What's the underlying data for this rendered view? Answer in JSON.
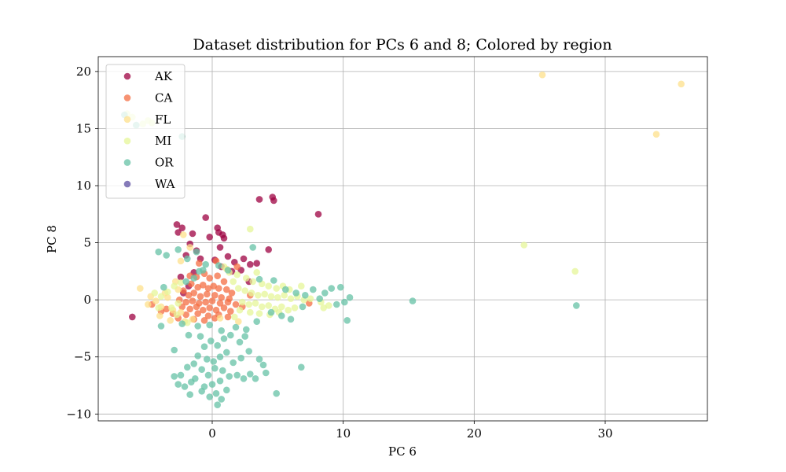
{
  "chart_data": {
    "type": "scatter",
    "title": "Dataset distribution for PCs 6 and 8; Colored by region",
    "xlabel": "PC 6",
    "ylabel": "PC 8",
    "xlim": [
      -8.7,
      37.8
    ],
    "ylim": [
      -10.6,
      21.3
    ],
    "xticks": [
      0,
      10,
      20,
      30
    ],
    "yticks": [
      -10,
      -5,
      0,
      5,
      10,
      15,
      20
    ],
    "grid": true,
    "legend_position": "upper-left",
    "series": [
      {
        "name": "AK",
        "color": "#9e0142",
        "points": [
          [
            -6.1,
            -1.5
          ],
          [
            -2.7,
            6.6
          ],
          [
            -2.3,
            6.3
          ],
          [
            -2.6,
            5.9
          ],
          [
            -1.5,
            5.8
          ],
          [
            -0.5,
            7.2
          ],
          [
            0.4,
            6.3
          ],
          [
            0.5,
            5.9
          ],
          [
            0.8,
            5.7
          ],
          [
            0.9,
            5.4
          ],
          [
            -0.2,
            5.5
          ],
          [
            0.6,
            4.6
          ],
          [
            1.2,
            3.8
          ],
          [
            1.7,
            3.3
          ],
          [
            2.4,
            3.6
          ],
          [
            2.9,
            3.1
          ],
          [
            3.4,
            3.2
          ],
          [
            3.6,
            8.8
          ],
          [
            4.6,
            9.0
          ],
          [
            4.7,
            8.7
          ],
          [
            4.3,
            4.4
          ],
          [
            8.1,
            7.5
          ],
          [
            -1.7,
            4.9
          ],
          [
            -1.2,
            4.3
          ],
          [
            -2.0,
            3.9
          ],
          [
            -0.9,
            3.6
          ],
          [
            0.2,
            3.5
          ],
          [
            -1.4,
            2.4
          ],
          [
            0.7,
            2.9
          ],
          [
            1.5,
            2.5
          ],
          [
            2.2,
            2.6
          ],
          [
            -2.4,
            2.0
          ],
          [
            2.8,
            1.6
          ],
          [
            -2.2,
            0.6
          ],
          [
            -1.8,
            1.2
          ]
        ]
      },
      {
        "name": "CA",
        "color": "#f46d43",
        "points": [
          [
            -1.0,
            3.2
          ],
          [
            0.3,
            3.4
          ],
          [
            1.9,
            2.9
          ],
          [
            -1.7,
            2.1
          ],
          [
            -1.2,
            2.0
          ],
          [
            -0.6,
            2.3
          ],
          [
            -0.2,
            1.9
          ],
          [
            0.4,
            2.1
          ],
          [
            0.9,
            1.6
          ],
          [
            -1.6,
            1.4
          ],
          [
            -1.1,
            1.1
          ],
          [
            -0.7,
            1.3
          ],
          [
            -0.3,
            1.0
          ],
          [
            0.1,
            1.2
          ],
          [
            0.5,
            1.0
          ],
          [
            1.1,
            0.9
          ],
          [
            1.5,
            0.6
          ],
          [
            -2.2,
            0.8
          ],
          [
            -1.8,
            0.4
          ],
          [
            -1.4,
            0.6
          ],
          [
            -0.9,
            0.3
          ],
          [
            -0.4,
            0.5
          ],
          [
            0.2,
            0.4
          ],
          [
            0.7,
            0.2
          ],
          [
            1.3,
            0.1
          ],
          [
            -2.5,
            0.0
          ],
          [
            -2.0,
            -0.2
          ],
          [
            -1.5,
            -0.1
          ],
          [
            -1.0,
            -0.3
          ],
          [
            -0.5,
            -0.2
          ],
          [
            0.0,
            -0.1
          ],
          [
            0.6,
            -0.3
          ],
          [
            1.2,
            -0.2
          ],
          [
            1.8,
            -0.4
          ],
          [
            -2.3,
            -0.6
          ],
          [
            -1.7,
            -0.8
          ],
          [
            -1.2,
            -0.6
          ],
          [
            -0.7,
            -0.9
          ],
          [
            -0.2,
            -0.7
          ],
          [
            0.3,
            -0.9
          ],
          [
            0.9,
            -0.7
          ],
          [
            1.4,
            -1.0
          ],
          [
            -3.0,
            -1.2
          ],
          [
            -2.0,
            -1.3
          ],
          [
            -1.1,
            -1.2
          ],
          [
            -0.3,
            -1.4
          ],
          [
            0.5,
            -1.3
          ],
          [
            1.2,
            -1.5
          ],
          [
            -2.6,
            -1.6
          ],
          [
            -1.4,
            -1.7
          ],
          [
            -0.6,
            -1.8
          ],
          [
            0.2,
            -1.6
          ],
          [
            -3.5,
            -0.8
          ],
          [
            -3.9,
            -1.0
          ],
          [
            2.9,
            0.4
          ],
          [
            7.4,
            -0.3
          ],
          [
            -4.6,
            -0.4
          ],
          [
            2.3,
            -0.6
          ]
        ]
      },
      {
        "name": "FL",
        "color": "#fee08b",
        "points": [
          [
            -5.5,
            1.0
          ],
          [
            -4.7,
            0.3
          ],
          [
            -4.3,
            -0.1
          ],
          [
            -4.9,
            -0.4
          ],
          [
            -3.9,
            -0.6
          ],
          [
            -3.4,
            0.2
          ],
          [
            -3.0,
            -0.9
          ],
          [
            -4.0,
            -1.4
          ],
          [
            -3.6,
            0.6
          ],
          [
            -2.6,
            0.9
          ],
          [
            -2.4,
            -1.1
          ],
          [
            -3.2,
            -1.8
          ],
          [
            -2.8,
            1.6
          ],
          [
            -2.1,
            -1.9
          ],
          [
            2.0,
            -1.9
          ],
          [
            25.2,
            19.7
          ],
          [
            35.8,
            18.9
          ],
          [
            33.9,
            14.5
          ],
          [
            -2.2,
            5.7
          ],
          [
            -1.7,
            4.6
          ],
          [
            -2.4,
            3.4
          ],
          [
            1.1,
            2.7
          ],
          [
            0.6,
            -1.6
          ],
          [
            -1.5,
            -1.7
          ]
        ]
      },
      {
        "name": "MI",
        "color": "#e6f598",
        "points": [
          [
            -6.5,
            16.3
          ],
          [
            -6.1,
            16.0
          ],
          [
            -5.3,
            15.4
          ],
          [
            -4.9,
            15.7
          ],
          [
            -4.6,
            15.5
          ],
          [
            2.9,
            6.2
          ],
          [
            3.4,
            2.4
          ],
          [
            23.8,
            4.8
          ],
          [
            27.7,
            2.5
          ],
          [
            1.9,
            2.2
          ],
          [
            2.6,
            1.9
          ],
          [
            3.1,
            1.6
          ],
          [
            3.8,
            1.4
          ],
          [
            4.3,
            1.2
          ],
          [
            4.9,
            1.0
          ],
          [
            5.4,
            1.2
          ],
          [
            5.9,
            0.9
          ],
          [
            6.8,
            1.2
          ],
          [
            2.0,
            1.0
          ],
          [
            2.5,
            0.8
          ],
          [
            3.0,
            0.6
          ],
          [
            3.5,
            0.4
          ],
          [
            4.0,
            0.5
          ],
          [
            4.5,
            0.3
          ],
          [
            5.0,
            0.2
          ],
          [
            5.5,
            0.4
          ],
          [
            6.0,
            0.1
          ],
          [
            6.5,
            0.3
          ],
          [
            7.0,
            0.0
          ],
          [
            7.5,
            0.1
          ],
          [
            8.3,
            -0.2
          ],
          [
            8.9,
            -0.5
          ],
          [
            2.3,
            -0.2
          ],
          [
            2.8,
            -0.4
          ],
          [
            3.3,
            -0.3
          ],
          [
            3.8,
            -0.6
          ],
          [
            4.3,
            -0.5
          ],
          [
            4.8,
            -0.8
          ],
          [
            5.3,
            -0.6
          ],
          [
            5.8,
            -0.9
          ],
          [
            6.3,
            -0.7
          ],
          [
            2.1,
            -0.9
          ],
          [
            2.9,
            -1.1
          ],
          [
            3.6,
            -1.2
          ],
          [
            4.4,
            -1.3
          ],
          [
            5.1,
            -1.1
          ],
          [
            1.7,
            -1.5
          ],
          [
            -2.4,
            1.5
          ],
          [
            -2.9,
            1.2
          ],
          [
            -3.4,
            0.7
          ],
          [
            -3.9,
            0.3
          ],
          [
            -2.6,
            -0.3
          ],
          [
            -3.1,
            -0.7
          ],
          [
            -2.7,
            -1.3
          ],
          [
            -1.9,
            -2.0
          ],
          [
            1.6,
            1.6
          ],
          [
            1.3,
            2.4
          ],
          [
            0.9,
            2.9
          ],
          [
            -4.4,
            0.6
          ],
          [
            -4.1,
            -0.7
          ],
          [
            8.5,
            -0.7
          ]
        ]
      },
      {
        "name": "OR",
        "color": "#66c2a5",
        "points": [
          [
            -6.7,
            16.2
          ],
          [
            -2.3,
            14.3
          ],
          [
            -5.8,
            15.3
          ],
          [
            -3.5,
            3.9
          ],
          [
            -4.1,
            4.2
          ],
          [
            -3.7,
            1.1
          ],
          [
            -3.9,
            -2.3
          ],
          [
            3.1,
            4.6
          ],
          [
            -1.9,
            3.6
          ],
          [
            3.6,
            1.8
          ],
          [
            4.7,
            1.7
          ],
          [
            5.6,
            0.9
          ],
          [
            6.4,
            0.6
          ],
          [
            7.1,
            0.4
          ],
          [
            7.7,
            0.9
          ],
          [
            8.2,
            0.1
          ],
          [
            8.6,
            0.6
          ],
          [
            9.1,
            1.0
          ],
          [
            9.5,
            -0.4
          ],
          [
            9.8,
            1.1
          ],
          [
            10.1,
            -0.2
          ],
          [
            10.3,
            -1.8
          ],
          [
            10.5,
            0.2
          ],
          [
            15.3,
            -0.1
          ],
          [
            27.8,
            -0.5
          ],
          [
            6.9,
            -0.6
          ],
          [
            5.3,
            -1.4
          ],
          [
            6.0,
            -1.7
          ],
          [
            4.5,
            -1.1
          ],
          [
            3.4,
            -1.9
          ],
          [
            2.6,
            -2.6
          ],
          [
            1.8,
            -2.4
          ],
          [
            1.4,
            -3.1
          ],
          [
            2.1,
            -3.7
          ],
          [
            2.8,
            -4.5
          ],
          [
            0.9,
            -3.4
          ],
          [
            0.4,
            -4.0
          ],
          [
            -0.1,
            -3.6
          ],
          [
            -0.6,
            -4.1
          ],
          [
            -0.9,
            -3.2
          ],
          [
            1.1,
            -4.6
          ],
          [
            0.6,
            -5.0
          ],
          [
            0.1,
            -5.4
          ],
          [
            -0.4,
            -5.2
          ],
          [
            -1.1,
            -4.9
          ],
          [
            -1.4,
            -5.6
          ],
          [
            1.6,
            -5.5
          ],
          [
            0.8,
            -6.2
          ],
          [
            0.2,
            -6.0
          ],
          [
            -0.3,
            -6.6
          ],
          [
            -0.8,
            -6.1
          ],
          [
            -1.3,
            -6.9
          ],
          [
            1.3,
            -6.7
          ],
          [
            0.6,
            -7.1
          ],
          [
            0.0,
            -7.4
          ],
          [
            -0.6,
            -7.6
          ],
          [
            -1.6,
            -7.2
          ],
          [
            1.1,
            -7.9
          ],
          [
            0.3,
            -8.2
          ],
          [
            -0.2,
            -8.5
          ],
          [
            -0.8,
            -8.0
          ],
          [
            0.7,
            -8.7
          ],
          [
            0.4,
            -9.2
          ],
          [
            -2.1,
            -7.6
          ],
          [
            -2.4,
            -6.6
          ],
          [
            -2.6,
            -7.4
          ],
          [
            -2.9,
            -6.7
          ],
          [
            -1.7,
            -8.3
          ],
          [
            -1.9,
            -5.9
          ],
          [
            1.9,
            -6.6
          ],
          [
            2.4,
            -6.9
          ],
          [
            2.9,
            -6.5
          ],
          [
            3.3,
            -6.9
          ],
          [
            3.9,
            -5.7
          ],
          [
            4.1,
            -6.4
          ],
          [
            4.9,
            -8.2
          ],
          [
            6.8,
            -5.9
          ],
          [
            3.6,
            -5.2
          ],
          [
            2.2,
            -5.1
          ],
          [
            2.5,
            -3.2
          ],
          [
            -2.9,
            -4.4
          ],
          [
            -1.8,
            -3.1
          ],
          [
            -2.3,
            -2.1
          ],
          [
            -1.1,
            -2.3
          ],
          [
            -0.2,
            -2.2
          ],
          [
            0.7,
            -2.7
          ],
          [
            -2.0,
            1.6
          ],
          [
            -1.4,
            1.9
          ],
          [
            -0.7,
            2.6
          ],
          [
            -1.2,
            4.2
          ],
          [
            -2.6,
            4.4
          ],
          [
            -1.0,
            2.5
          ],
          [
            -0.5,
            3.1
          ],
          [
            0.5,
            3.0
          ],
          [
            1.2,
            2.6
          ]
        ]
      },
      {
        "name": "WA",
        "color": "#5e4fa2",
        "points": []
      }
    ]
  }
}
